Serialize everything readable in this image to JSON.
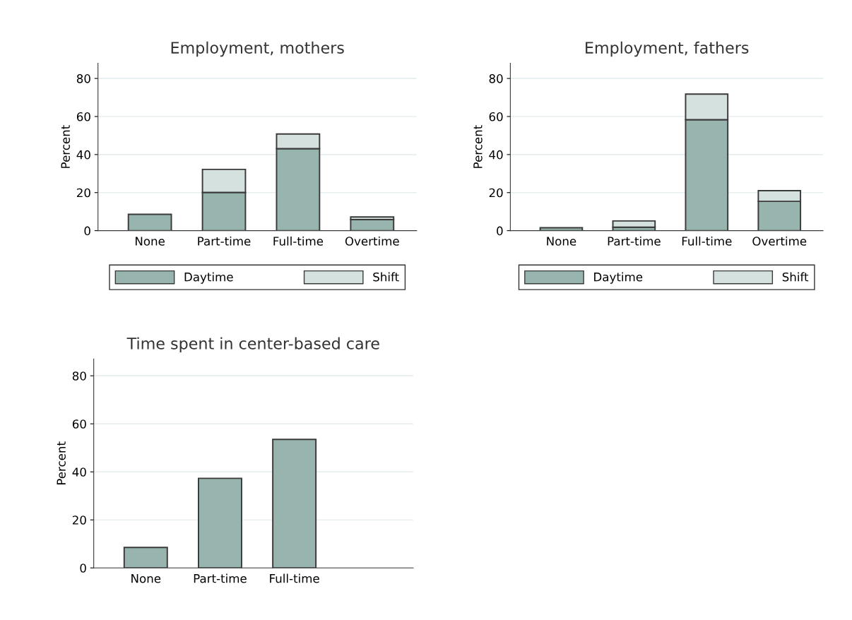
{
  "chart_data": [
    {
      "type": "bar",
      "title": "Employment, mothers",
      "ylabel": "Percent",
      "categories": [
        "None",
        "Part-time",
        "Full-time",
        "Overtime"
      ],
      "stacked": true,
      "ylim": [
        0,
        88
      ],
      "yticks": [
        0,
        20,
        40,
        60,
        80
      ],
      "grid": "y",
      "legend": "bottom",
      "series": [
        {
          "name": "Daytime",
          "color": "#97b5ae",
          "values": [
            8.6,
            20.1,
            43.1,
            5.8
          ]
        },
        {
          "name": "Shift",
          "color": "#d5e1de",
          "values": [
            null,
            12.1,
            7.7,
            1.4
          ]
        }
      ]
    },
    {
      "type": "bar",
      "title": "Employment, fathers",
      "ylabel": "Percent",
      "categories": [
        "None",
        "Part-time",
        "Full-time",
        "Overtime"
      ],
      "stacked": true,
      "ylim": [
        0,
        88
      ],
      "yticks": [
        0,
        20,
        40,
        60,
        80
      ],
      "grid": "y",
      "legend": "bottom",
      "series": [
        {
          "name": "Daytime",
          "color": "#97b5ae",
          "values": [
            1.5,
            1.8,
            58.3,
            15.4
          ]
        },
        {
          "name": "Shift",
          "color": "#d5e1de",
          "values": [
            null,
            3.3,
            13.5,
            5.6
          ]
        }
      ]
    },
    {
      "type": "bar",
      "title": "Time spent in center-based care",
      "ylabel": "Percent",
      "categories": [
        "None",
        "Part-time",
        "Full-time"
      ],
      "ylim": [
        0,
        87
      ],
      "yticks": [
        0,
        20,
        40,
        60,
        80
      ],
      "grid": "y",
      "series": [
        {
          "color": "#97b5ae",
          "values": [
            8.5,
            37.3,
            53.5
          ]
        }
      ]
    }
  ]
}
